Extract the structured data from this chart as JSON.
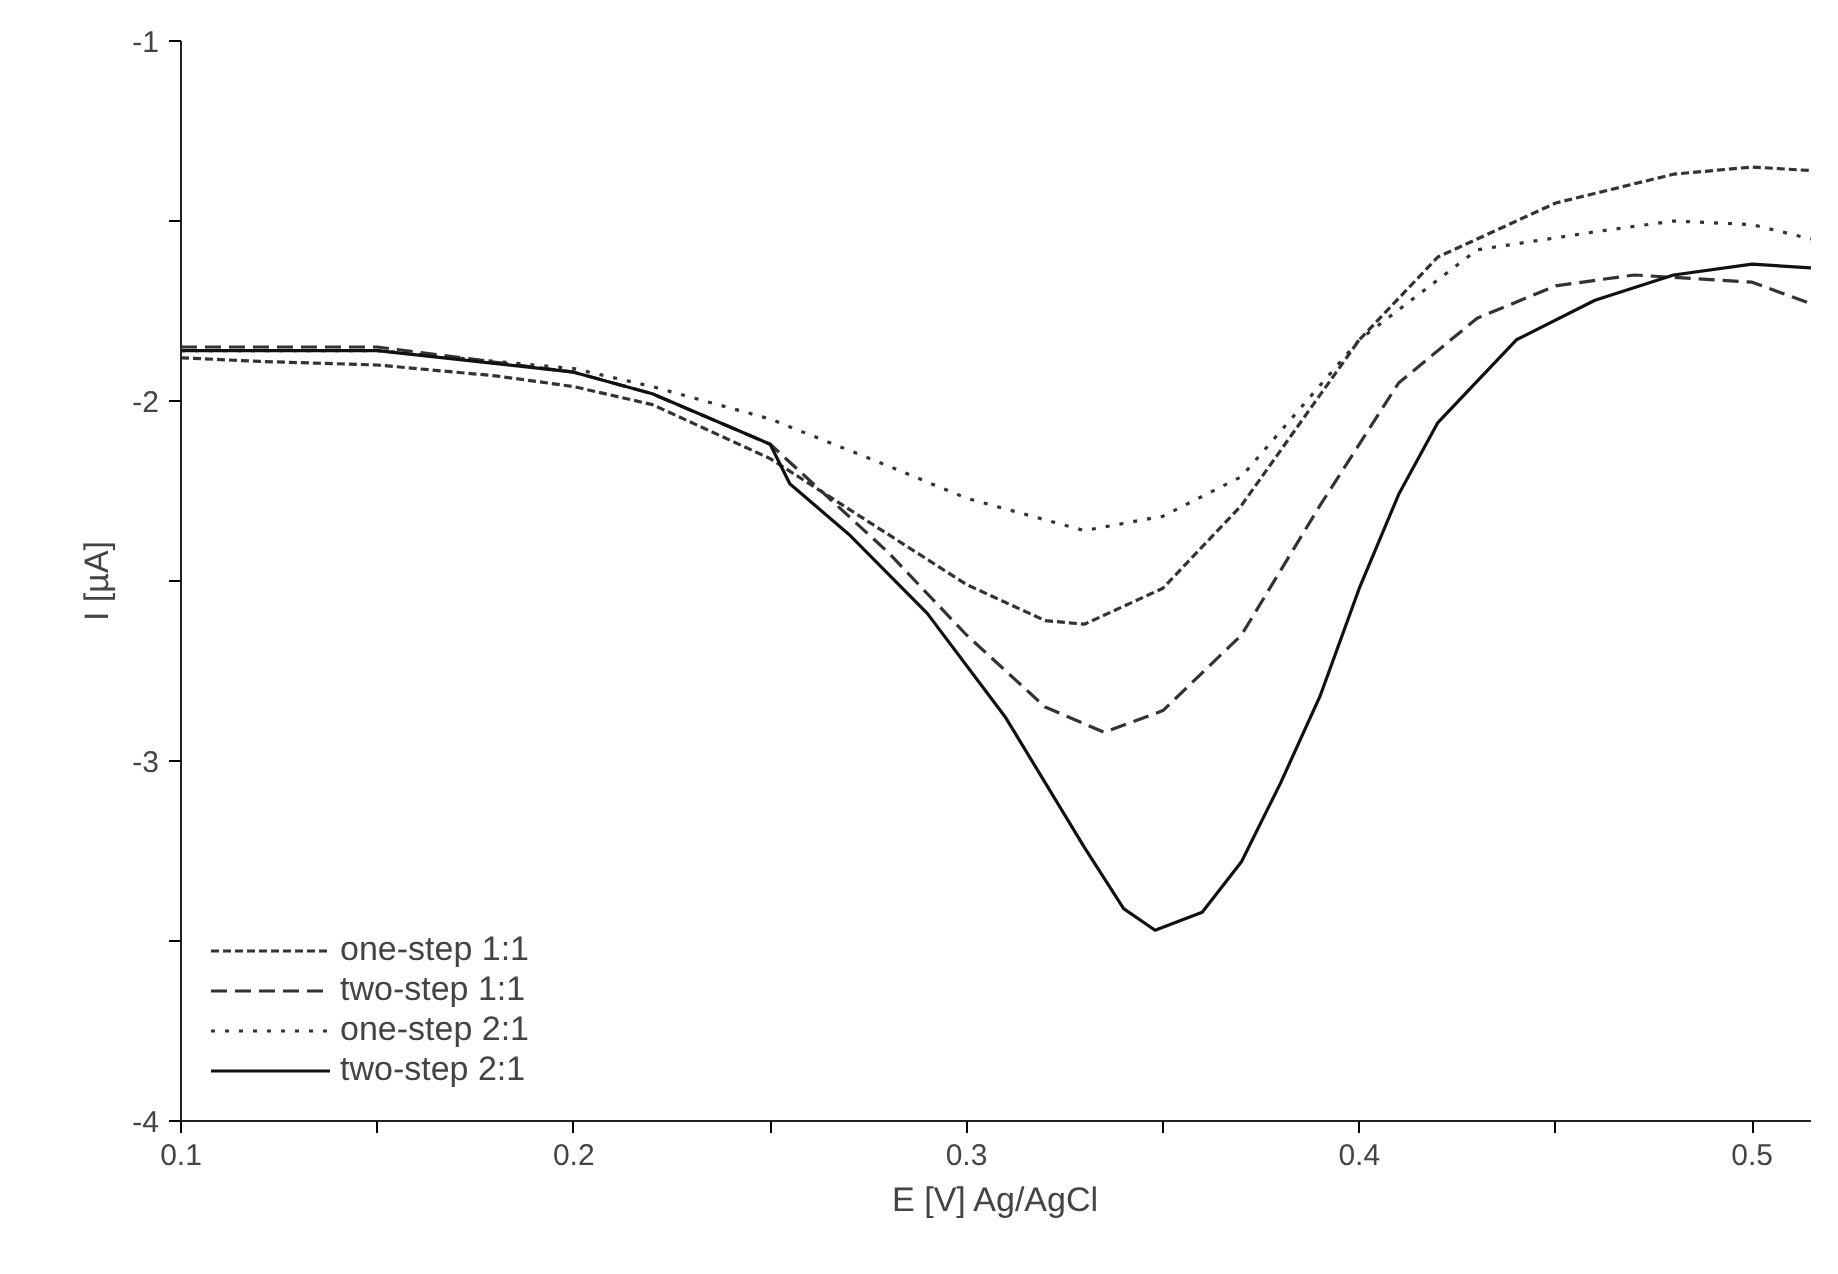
{
  "chart_data": {
    "type": "line",
    "xlabel": "E [V] Ag/AgCl",
    "ylabel": "I [µA]",
    "xlim": [
      0.1,
      0.515
    ],
    "ylim": [
      -4,
      -1
    ],
    "xticks": [
      0.1,
      {
        "value": 0.15,
        "label": null
      },
      0.2,
      {
        "value": 0.25,
        "label": null
      },
      0.3,
      {
        "value": 0.35,
        "label": null
      },
      0.4,
      {
        "value": 0.45,
        "label": null
      },
      0.5
    ],
    "yticks": [
      -4,
      {
        "value": -3.5,
        "label": null
      },
      -3,
      {
        "value": -2.5,
        "label": null
      },
      -2,
      {
        "value": -1.5,
        "label": null
      },
      -1
    ],
    "grid": false,
    "legend": "bottom left",
    "marker": "none",
    "series": [
      {
        "name": "one-step 1:1",
        "color": "#333333",
        "line_style": "short-dashed",
        "x": [
          0.1,
          0.12,
          0.15,
          0.18,
          0.2,
          0.22,
          0.25,
          0.28,
          0.3,
          0.32,
          0.33,
          0.35,
          0.37,
          0.4,
          0.42,
          0.45,
          0.48,
          0.5,
          0.515
        ],
        "values": [
          -1.88,
          -1.89,
          -1.9,
          -1.93,
          -1.96,
          -2.01,
          -2.16,
          -2.37,
          -2.51,
          -2.61,
          -2.62,
          -2.52,
          -2.29,
          -1.83,
          -1.6,
          -1.45,
          -1.37,
          -1.35,
          -1.36
        ]
      },
      {
        "name": "two-step 1:1",
        "color": "#333333",
        "line_style": "dashed",
        "x": [
          0.1,
          0.15,
          0.2,
          0.22,
          0.25,
          0.28,
          0.3,
          0.32,
          0.335,
          0.35,
          0.37,
          0.39,
          0.41,
          0.43,
          0.45,
          0.47,
          0.5,
          0.515
        ],
        "values": [
          -1.85,
          -1.85,
          -1.92,
          -1.98,
          -2.12,
          -2.42,
          -2.65,
          -2.85,
          -2.92,
          -2.86,
          -2.65,
          -2.29,
          -1.95,
          -1.77,
          -1.68,
          -1.65,
          -1.67,
          -1.73
        ]
      },
      {
        "name": "one-step 2:1",
        "color": "#333333",
        "line_style": "dotted",
        "x": [
          0.1,
          0.15,
          0.2,
          0.22,
          0.25,
          0.28,
          0.3,
          0.33,
          0.35,
          0.37,
          0.4,
          0.43,
          0.46,
          0.48,
          0.5,
          0.515
        ],
        "values": [
          -1.86,
          -1.86,
          -1.91,
          -1.96,
          -2.05,
          -2.18,
          -2.27,
          -2.36,
          -2.32,
          -2.21,
          -1.83,
          -1.58,
          -1.53,
          -1.5,
          -1.51,
          -1.55
        ]
      },
      {
        "name": "two-step 2:1",
        "color": "#111111",
        "line_style": "solid",
        "x": [
          0.1,
          0.15,
          0.2,
          0.22,
          0.25,
          0.255,
          0.27,
          0.29,
          0.31,
          0.33,
          0.34,
          0.348,
          0.36,
          0.37,
          0.38,
          0.39,
          0.4,
          0.41,
          0.42,
          0.44,
          0.46,
          0.48,
          0.5,
          0.515
        ],
        "values": [
          -1.86,
          -1.86,
          -1.92,
          -1.98,
          -2.12,
          -2.23,
          -2.37,
          -2.59,
          -2.88,
          -3.24,
          -3.41,
          -3.47,
          -3.42,
          -3.28,
          -3.06,
          -2.82,
          -2.52,
          -2.26,
          -2.06,
          -1.83,
          -1.72,
          -1.65,
          -1.62,
          -1.63
        ]
      }
    ]
  }
}
